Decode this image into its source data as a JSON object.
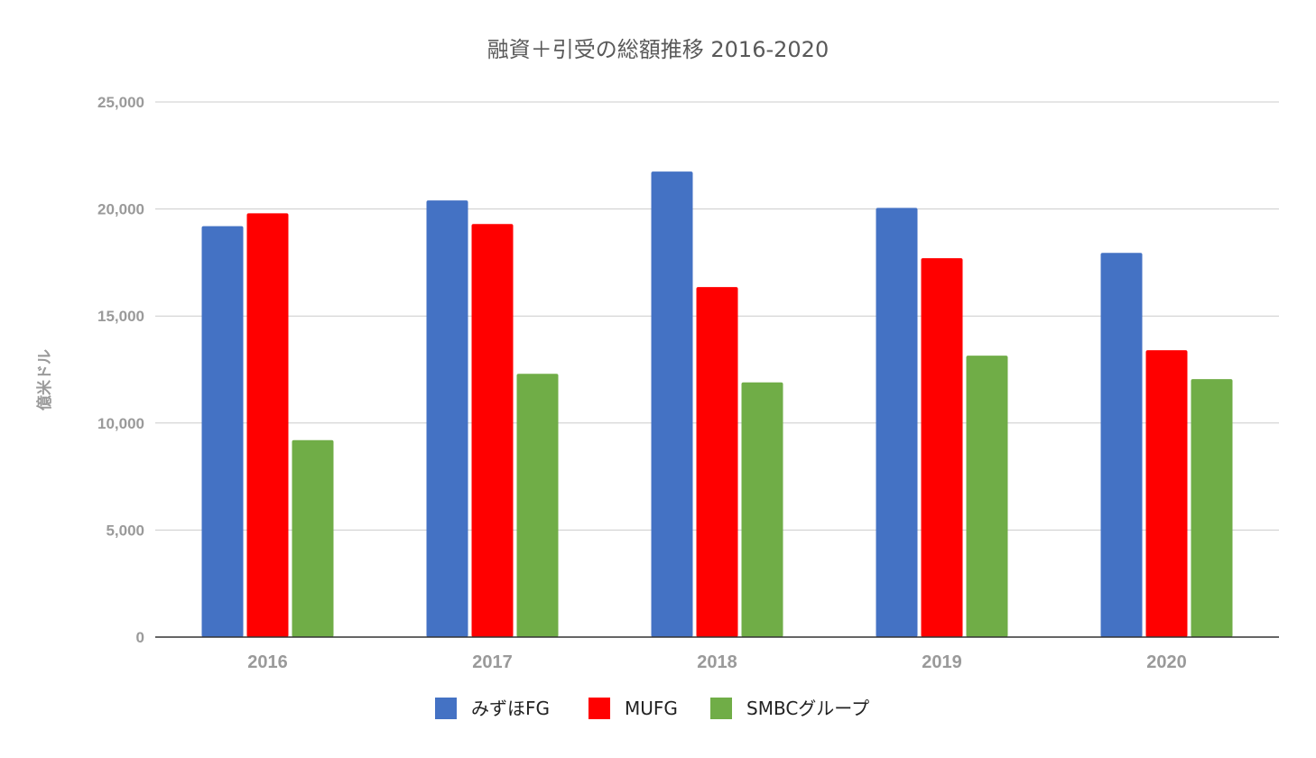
{
  "chart_data": {
    "type": "bar",
    "title": "融資＋引受の総額推移 2016-2020",
    "xlabel": "",
    "ylabel": "億米ドル",
    "ylim": [
      0,
      25000
    ],
    "yticks": [
      0,
      5000,
      10000,
      15000,
      20000,
      25000
    ],
    "ytick_labels": [
      "0",
      "5,000",
      "10,000",
      "15,000",
      "20,000",
      "25,000"
    ],
    "grid": true,
    "legend_position": "bottom",
    "categories": [
      "2016",
      "2017",
      "2018",
      "2019",
      "2020"
    ],
    "series": [
      {
        "name": "みずほFG",
        "color": "#4472c4",
        "values": [
          19200,
          20400,
          21750,
          20050,
          17950
        ]
      },
      {
        "name": "MUFG",
        "color": "#ff0000",
        "values": [
          19800,
          19300,
          16350,
          17700,
          13400
        ]
      },
      {
        "name": "SMBCグループ",
        "color": "#70ad47",
        "values": [
          9200,
          12300,
          11900,
          13150,
          12050
        ]
      }
    ]
  }
}
